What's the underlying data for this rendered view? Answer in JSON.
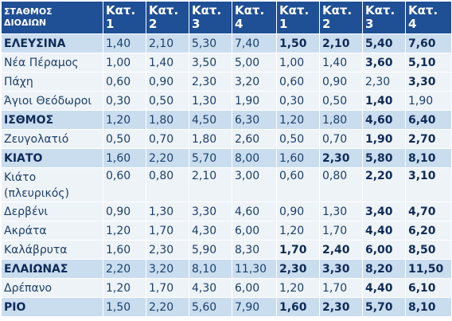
{
  "header": {
    "station_line1": "ΣΤΑΘΜΟΣ",
    "station_line2": "ΔΙΟΔΙΩΝ",
    "cols": [
      {
        "l1": "Κατ.",
        "l2": "1"
      },
      {
        "l1": "Κατ.",
        "l2": "2"
      },
      {
        "l1": "Κατ.",
        "l2": "3"
      },
      {
        "l1": "Κατ.",
        "l2": "4"
      },
      {
        "l1": "Κατ.",
        "l2": "1"
      },
      {
        "l1": "Κατ.",
        "l2": "2"
      },
      {
        "l1": "Κατ.",
        "l2": "3"
      },
      {
        "l1": "Κατ.",
        "l2": "4"
      }
    ]
  },
  "rows": [
    {
      "name": "ΕΛΕΥΣΙΝΑ",
      "hl": true,
      "tall": false,
      "v": [
        "1,40",
        "2,10",
        "5,30",
        "7,40",
        "1,50",
        "2,10",
        "5,40",
        "7,60"
      ],
      "b": [
        false,
        false,
        false,
        false,
        true,
        true,
        true,
        true
      ]
    },
    {
      "name": "Νέα Πέραμος",
      "hl": false,
      "tall": false,
      "v": [
        "1,00",
        "1,40",
        "3,50",
        "5,00",
        "1,00",
        "1,40",
        "3,60",
        "5,10"
      ],
      "b": [
        false,
        false,
        false,
        false,
        false,
        false,
        true,
        true
      ]
    },
    {
      "name": "Πάχη",
      "hl": false,
      "tall": false,
      "v": [
        "0,60",
        "0,90",
        "2,30",
        "3,20",
        "0,60",
        "0,90",
        "2,30",
        "3,30"
      ],
      "b": [
        false,
        false,
        false,
        false,
        false,
        false,
        false,
        true
      ]
    },
    {
      "name": "Άγιοι Θεόδωροι",
      "hl": false,
      "tall": false,
      "v": [
        "0,30",
        "0,50",
        "1,30",
        "1,90",
        "0,30",
        "0,50",
        "1,40",
        "1,90"
      ],
      "b": [
        false,
        false,
        false,
        false,
        false,
        false,
        true,
        false
      ]
    },
    {
      "name": "ΙΣΘΜΟΣ",
      "hl": true,
      "tall": false,
      "v": [
        "1,20",
        "1,80",
        "4,50",
        "6,30",
        "1,20",
        "1,80",
        "4,60",
        "6,40"
      ],
      "b": [
        false,
        false,
        false,
        false,
        false,
        false,
        true,
        true
      ]
    },
    {
      "name": "Ζευγολατιό",
      "hl": false,
      "tall": false,
      "v": [
        "0,50",
        "0,70",
        "1,80",
        "2,60",
        "0,50",
        "0,70",
        "1,90",
        "2,70"
      ],
      "b": [
        false,
        false,
        false,
        false,
        false,
        false,
        true,
        true
      ]
    },
    {
      "name": "ΚΙΑΤΟ",
      "hl": true,
      "tall": false,
      "v": [
        "1,60",
        "2,20",
        "5,70",
        "8,00",
        "1,60",
        "2,30",
        "5,80",
        "8,10"
      ],
      "b": [
        false,
        false,
        false,
        false,
        false,
        true,
        true,
        true
      ]
    },
    {
      "name": "Κιάτο (πλευρικός)",
      "hl": false,
      "tall": true,
      "v": [
        "0,60",
        "0,80",
        "2,10",
        "3,00",
        "0,60",
        "0,80",
        "2,20",
        "3,10"
      ],
      "b": [
        false,
        false,
        false,
        false,
        false,
        false,
        true,
        true
      ]
    },
    {
      "name": "Δερβένι",
      "hl": false,
      "tall": false,
      "v": [
        "0,90",
        "1,30",
        "3,30",
        "4,60",
        "0,90",
        "1,30",
        "3,40",
        "4,70"
      ],
      "b": [
        false,
        false,
        false,
        false,
        false,
        false,
        true,
        true
      ]
    },
    {
      "name": "Ακράτα",
      "hl": false,
      "tall": false,
      "v": [
        "1,20",
        "1,70",
        "4,30",
        "6,00",
        "1,20",
        "1,70",
        "4,40",
        "6,20"
      ],
      "b": [
        false,
        false,
        false,
        false,
        false,
        false,
        true,
        true
      ]
    },
    {
      "name": "Καλάβρυτα",
      "hl": false,
      "tall": false,
      "v": [
        "1,60",
        "2,30",
        "5,90",
        "8,30",
        "1,70",
        "2,40",
        "6,00",
        "8,50"
      ],
      "b": [
        false,
        false,
        false,
        false,
        true,
        true,
        true,
        true
      ]
    },
    {
      "name": "ΕΛΑΙΩΝΑΣ",
      "hl": true,
      "tall": false,
      "v": [
        "2,20",
        "3,20",
        "8,10",
        "11,30",
        "2,30",
        "3,30",
        "8,20",
        "11,50"
      ],
      "b": [
        false,
        false,
        false,
        false,
        true,
        true,
        true,
        true
      ]
    },
    {
      "name": "Δρέπανο",
      "hl": false,
      "tall": false,
      "v": [
        "1,20",
        "1,70",
        "4,30",
        "6,00",
        "1,20",
        "1,70",
        "4,40",
        "6,10"
      ],
      "b": [
        false,
        false,
        false,
        false,
        false,
        false,
        true,
        true
      ]
    },
    {
      "name": "ΡΙΟ",
      "hl": true,
      "tall": false,
      "v": [
        "1,50",
        "2,20",
        "5,60",
        "7,90",
        "1,60",
        "2,30",
        "5,70",
        "8,10"
      ],
      "b": [
        false,
        false,
        false,
        false,
        true,
        true,
        true,
        true
      ]
    }
  ]
}
